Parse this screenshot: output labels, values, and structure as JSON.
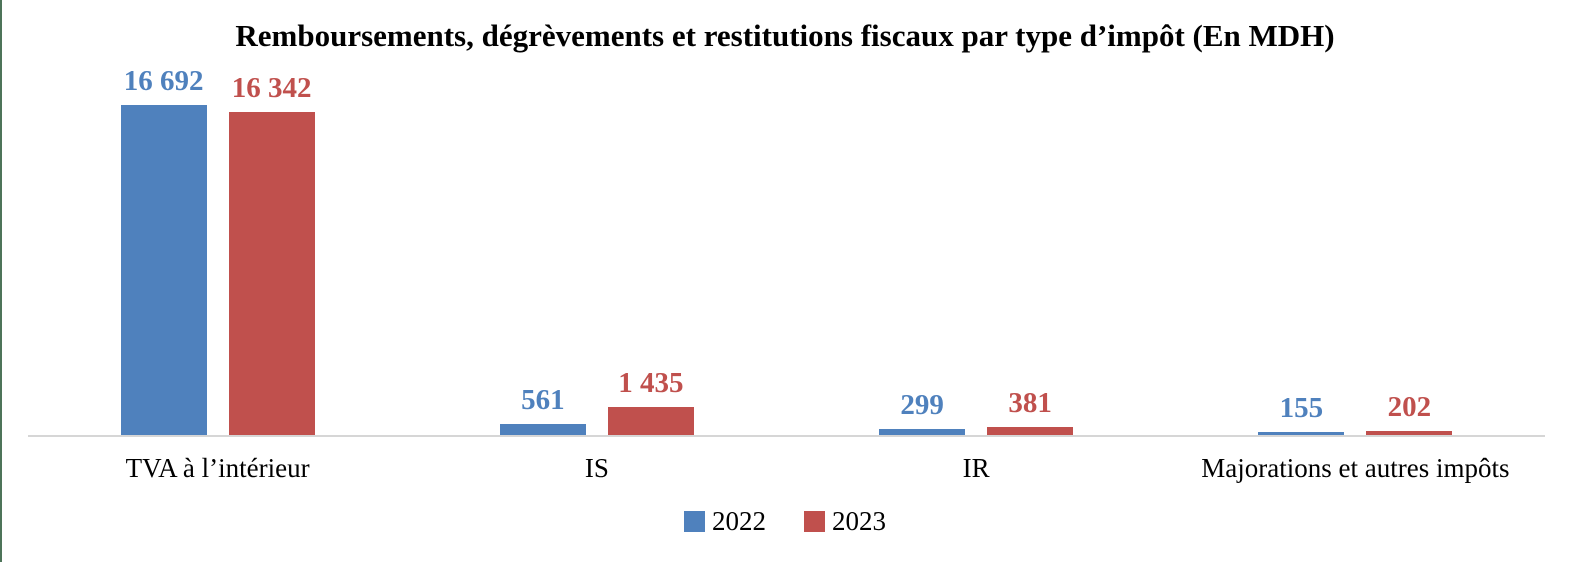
{
  "frame": {
    "left_border_color": "#4e7459"
  },
  "chart_data": {
    "type": "bar",
    "title": "Remboursements, dégrèvements et restitutions fiscaux par type d’impôt (En MDH)",
    "categories": [
      "TVA à l’intérieur",
      "IS",
      "IR",
      "Majorations et autres impôts"
    ],
    "series": [
      {
        "name": "2022",
        "color": "#4F81BD",
        "values": [
          16692,
          561,
          299,
          155
        ],
        "value_labels": [
          "16 692",
          "561",
          "299",
          "155"
        ]
      },
      {
        "name": "2023",
        "color": "#C0504D",
        "values": [
          16342,
          1435,
          381,
          202
        ],
        "value_labels": [
          "16 342",
          "1 435",
          "381",
          "202"
        ]
      }
    ],
    "xlabel": "",
    "ylabel": "",
    "ylim": [
      0,
      17000
    ],
    "grid": false,
    "axis_line_color": "#d6d6d6",
    "legend_position": "bottom",
    "legend": [
      "2022",
      "2023"
    ]
  }
}
